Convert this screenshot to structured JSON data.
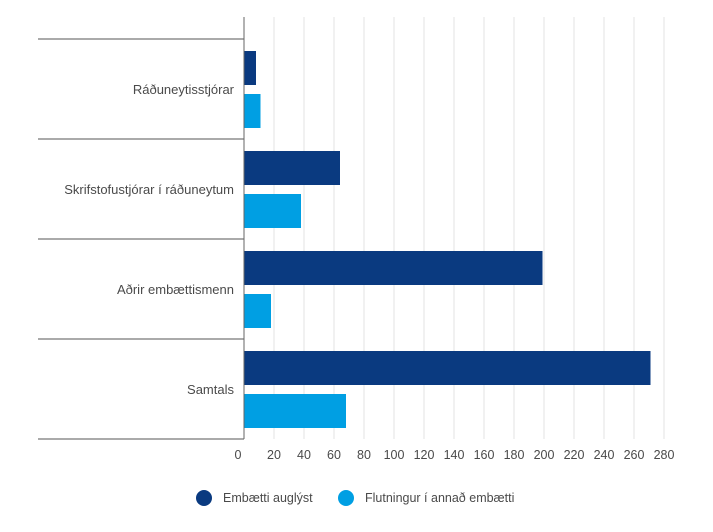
{
  "chart_data": {
    "type": "bar",
    "orientation": "horizontal",
    "categories": [
      "Ráðuneytisstjórar",
      "Skrifstofustjórar í ráðuneytum",
      "Aðrir embættismenn",
      "Samtals"
    ],
    "series": [
      {
        "name": "Embætti auglýst",
        "color": "#0a3a80",
        "values": [
          8,
          64,
          199,
          271
        ]
      },
      {
        "name": "Flutningur í annað embætti",
        "color": "#009fe3",
        "values": [
          11,
          38,
          18,
          68
        ]
      }
    ],
    "x_ticks": [
      "0",
      "20",
      "40",
      "60",
      "80",
      "100",
      "120",
      "140",
      "160",
      "180",
      "200",
      "220",
      "240",
      "260",
      "280"
    ],
    "xlim": [
      0,
      280
    ],
    "grid": true,
    "legend_position": "bottom",
    "title": "",
    "xlabel": "",
    "ylabel": ""
  }
}
